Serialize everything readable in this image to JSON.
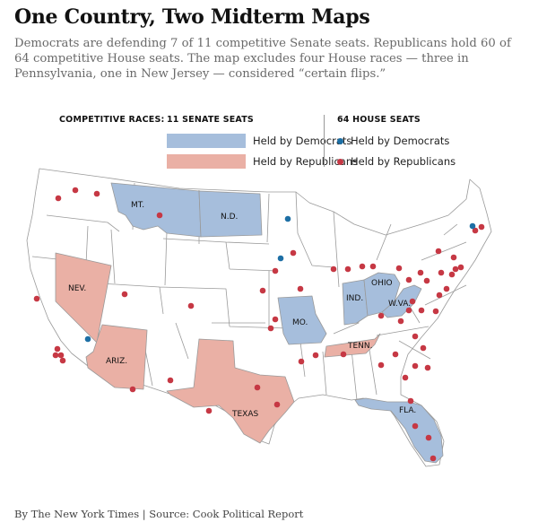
{
  "header": {
    "title": "One Country, Two Midterm Maps",
    "subtitle": "Democrats are defending 7 of 11 competitive Senate seats. Republicans hold 60 of 64 competitive House seats. The map excludes four House races — three in Pennsylvania, one in New Jersey — considered “certain flips.”"
  },
  "legend": {
    "label": "COMPETITIVE RACES:",
    "senate_heading": "11 SENATE SEATS",
    "house_heading": "64 HOUSE SEATS",
    "senate_dem": "Held by Democrats",
    "senate_rep": "Held by Republicans",
    "house_dem": "Held by Democrats",
    "house_rep": "Held by Republicans"
  },
  "colors": {
    "senate_dem": "#a6bedc",
    "senate_rep": "#eab0a5",
    "house_dem": "#1d6fa5",
    "house_rep": "#c63844",
    "state_fill": "#ffffff",
    "state_stroke": "#9a9a9a"
  },
  "senate_states": {
    "dem": [
      "MT.",
      "N.D.",
      "IND.",
      "OHIO",
      "W.VA.",
      "MO.",
      "FLA."
    ],
    "rep": [
      "NEV.",
      "ARIZ.",
      "TEXAS",
      "TENN."
    ]
  },
  "house_seats": {
    "dem": 4,
    "rep": 60
  },
  "source": "By The New York Times | Source: Cook Political Report"
}
